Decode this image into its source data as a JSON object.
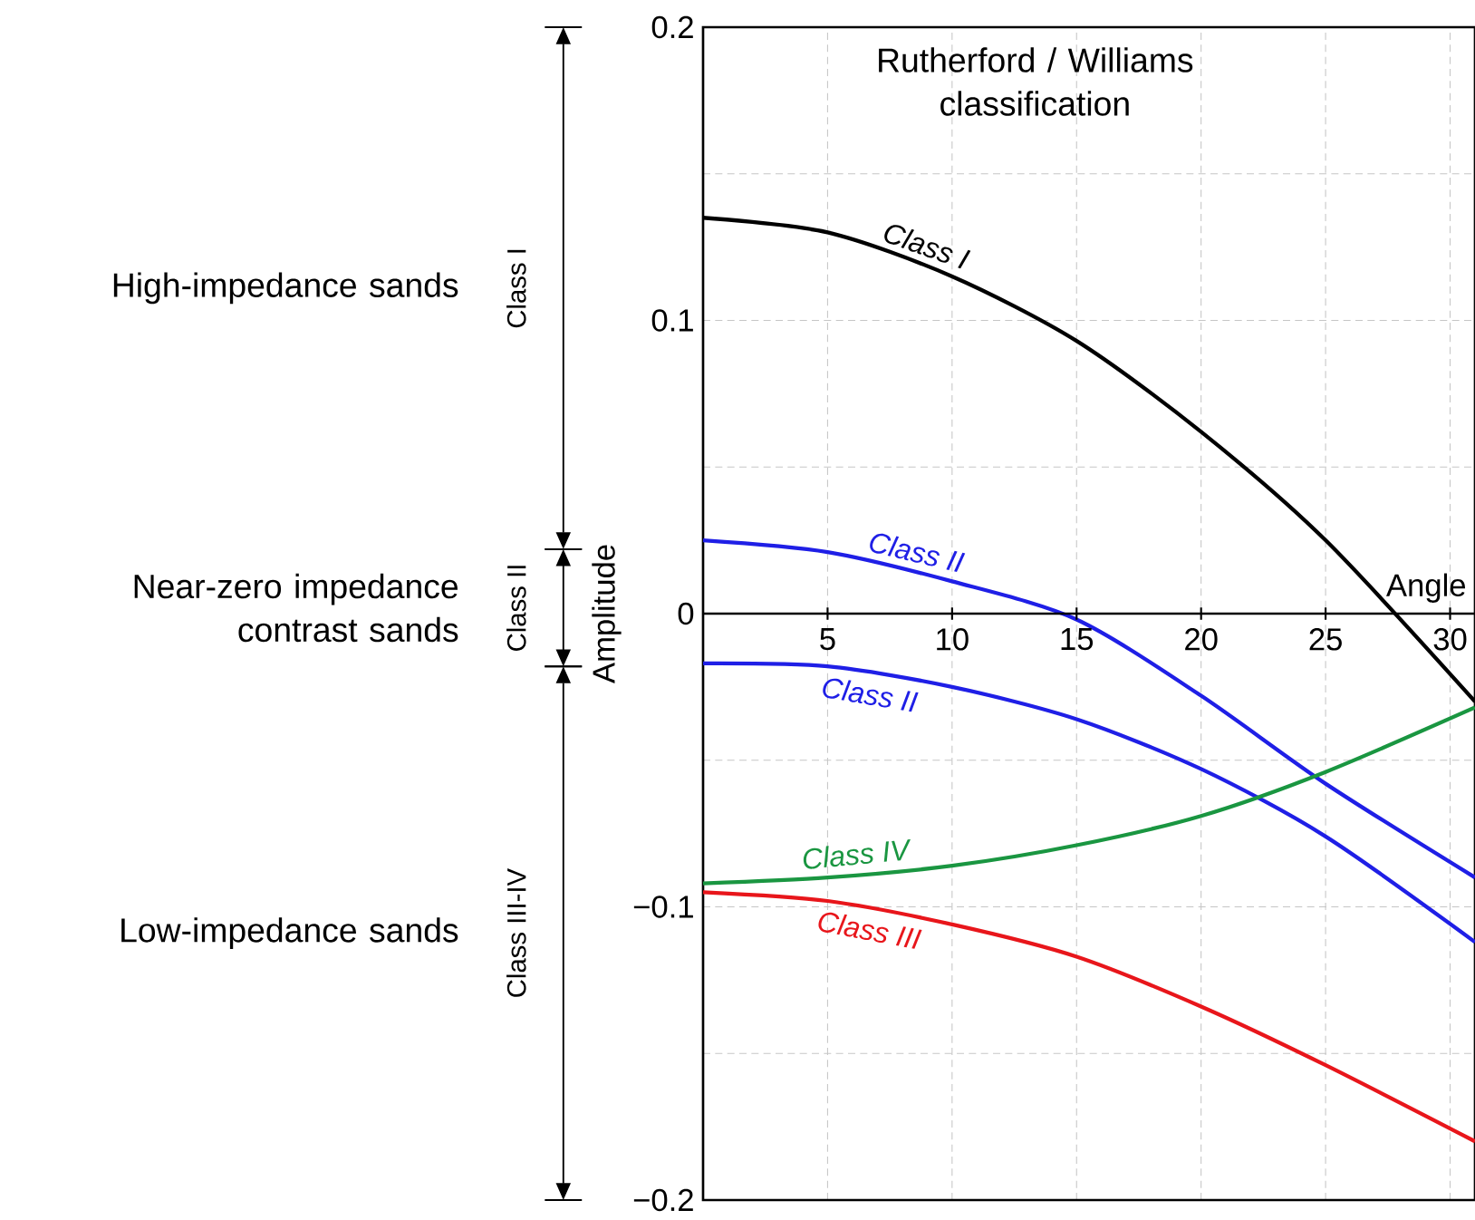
{
  "chart_data": {
    "type": "line",
    "title": "Rutherford / Williams classification",
    "xlabel": "Angle",
    "ylabel": "Amplitude",
    "xlim": [
      0,
      31
    ],
    "ylim": [
      -0.2,
      0.2
    ],
    "xticks": [
      5,
      10,
      15,
      20,
      25,
      30
    ],
    "yticks": [
      {
        "value": -0.2,
        "label": "−0.2"
      },
      {
        "value": -0.1,
        "label": "−0.1"
      },
      0,
      0.1,
      0.2
    ],
    "grid": true,
    "marker": "none",
    "line_style": "solid",
    "series": [
      {
        "name": "Class I",
        "color": "#000000",
        "x": [
          0,
          5,
          10,
          15,
          20,
          25,
          31
        ],
        "values": [
          0.135,
          0.13,
          0.115,
          0.093,
          0.062,
          0.025,
          -0.03
        ]
      },
      {
        "name": "Class II",
        "color": "#1f1fe6",
        "x": [
          0,
          5,
          10,
          15,
          20,
          25,
          31
        ],
        "values": [
          0.025,
          0.021,
          0.011,
          -0.002,
          -0.028,
          -0.058,
          -0.09
        ]
      },
      {
        "name": "Class II",
        "color": "#1f1fe6",
        "x": [
          0,
          5,
          10,
          15,
          20,
          25,
          31
        ],
        "values": [
          -0.017,
          -0.018,
          -0.025,
          -0.036,
          -0.053,
          -0.076,
          -0.112
        ]
      },
      {
        "name": "Class IV",
        "color": "#1a9641",
        "x": [
          0,
          5,
          10,
          15,
          20,
          25,
          31
        ],
        "values": [
          -0.092,
          -0.09,
          -0.086,
          -0.079,
          -0.069,
          -0.054,
          -0.032
        ]
      },
      {
        "name": "Class III",
        "color": "#e8161b",
        "x": [
          0,
          5,
          10,
          15,
          20,
          25,
          31
        ],
        "values": [
          -0.095,
          -0.098,
          -0.106,
          -0.117,
          -0.134,
          -0.154,
          -0.18
        ]
      }
    ],
    "annotations": [
      "High-impedance sands",
      "Near-zero impedance contrast sands",
      "Low-impedance sands",
      "Class I",
      "Class II",
      "Class III-IV"
    ]
  }
}
